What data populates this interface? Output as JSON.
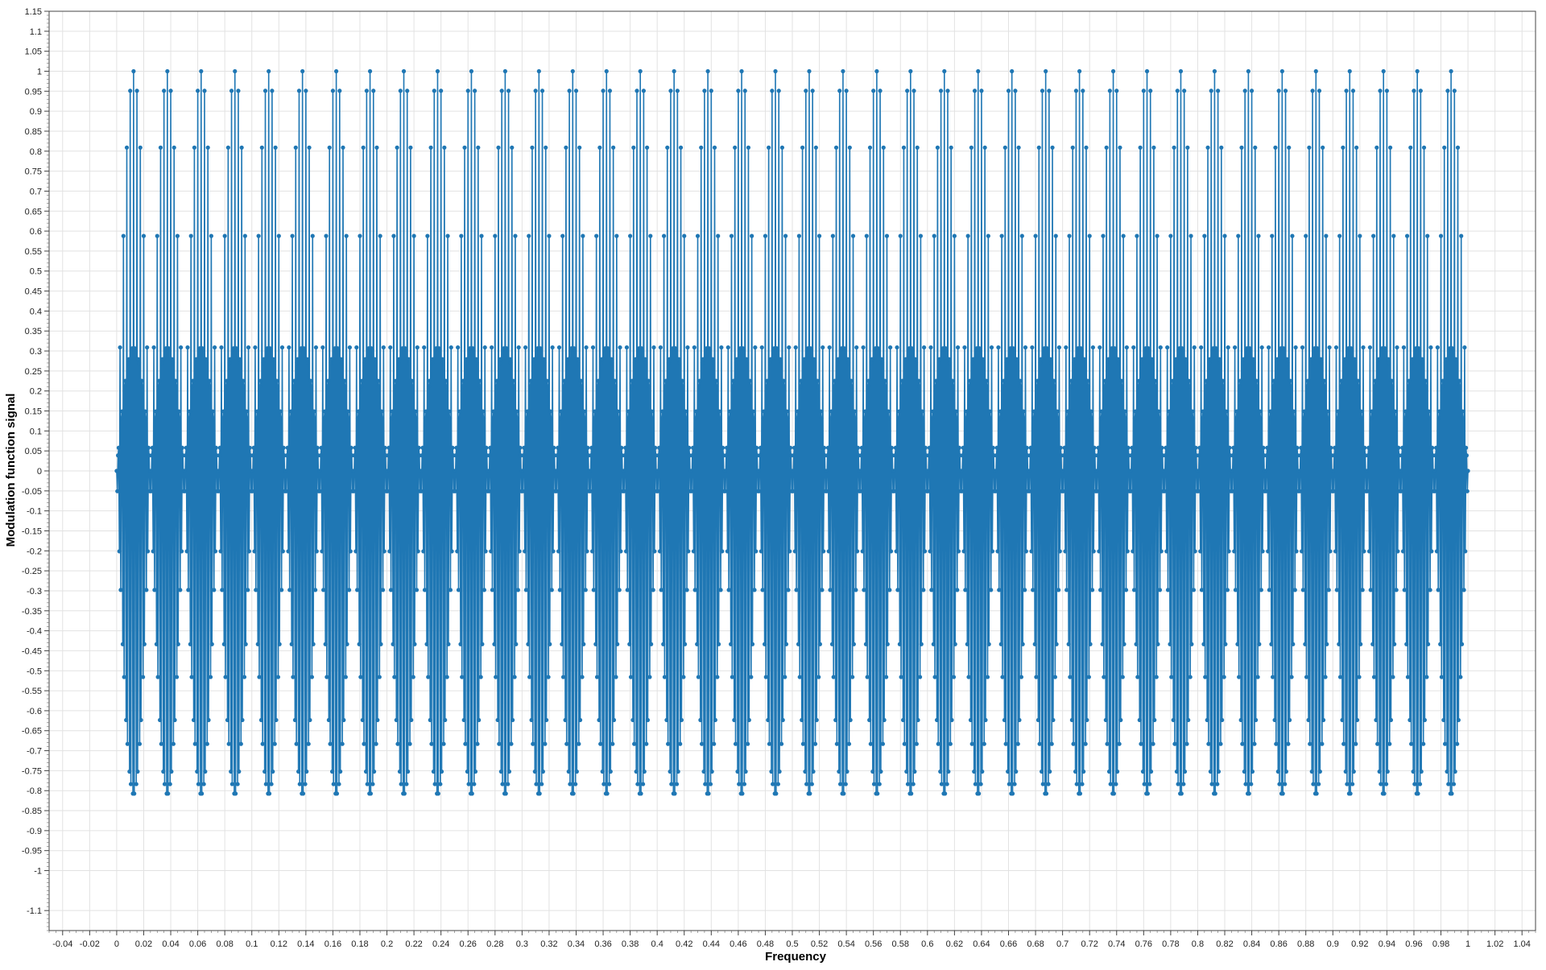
{
  "chart_data": {
    "type": "scatter",
    "title": "",
    "xlabel": "Frequency",
    "ylabel": "Modulation function signal",
    "xlim": [
      -0.05,
      1.05
    ],
    "ylim": [
      -1.15,
      1.15
    ],
    "x_ticks": [
      "-0.04",
      "-0.02",
      "0",
      "0.02",
      "0.04",
      "0.06",
      "0.08",
      "0.1",
      "0.12",
      "0.14",
      "0.16",
      "0.18",
      "0.2",
      "0.22",
      "0.24",
      "0.26",
      "0.28",
      "0.3",
      "0.32",
      "0.34",
      "0.36",
      "0.38",
      "0.4",
      "0.42",
      "0.44",
      "0.46",
      "0.48",
      "0.5",
      "0.52",
      "0.54",
      "0.56",
      "0.58",
      "0.6",
      "0.62",
      "0.64",
      "0.66",
      "0.68",
      "0.7",
      "0.72",
      "0.74",
      "0.76",
      "0.78",
      "0.8",
      "0.82",
      "0.84",
      "0.86",
      "0.88",
      "0.9",
      "0.92",
      "0.94",
      "0.96",
      "0.98",
      "1",
      "1.02",
      "1.04"
    ],
    "y_ticks": [
      "1.15",
      "1.1",
      "1.05",
      "1",
      "0.95",
      "0.9",
      "0.85",
      "0.8",
      "0.75",
      "0.7",
      "0.65",
      "0.6",
      "0.55",
      "0.5",
      "0.45",
      "0.4",
      "0.35",
      "0.3",
      "0.25",
      "0.2",
      "0.15",
      "0.1",
      "0.05",
      "0",
      "-0.05",
      "-0.1",
      "-0.15",
      "-0.2",
      "-0.25",
      "-0.3",
      "-0.35",
      "-0.4",
      "-0.45",
      "-0.5",
      "-0.55",
      "-0.6",
      "-0.65",
      "-0.7",
      "-0.75",
      "-0.8",
      "-0.85",
      "-0.9",
      "-0.95",
      "-1",
      "-1.1"
    ],
    "grid": true,
    "legend": "none",
    "series": [
      {
        "color": "#1f77b4",
        "marker": "circle",
        "line": true,
        "x_range": [
          0,
          1
        ],
        "points": 2001,
        "envelope_cycles": 40,
        "envelope_amplitude": 1,
        "carrier_cycles": 800,
        "description_of_values": "y = |sin(pi*40*x)| envelope modulating sin(2*pi*800*x) carrier"
      }
    ]
  }
}
